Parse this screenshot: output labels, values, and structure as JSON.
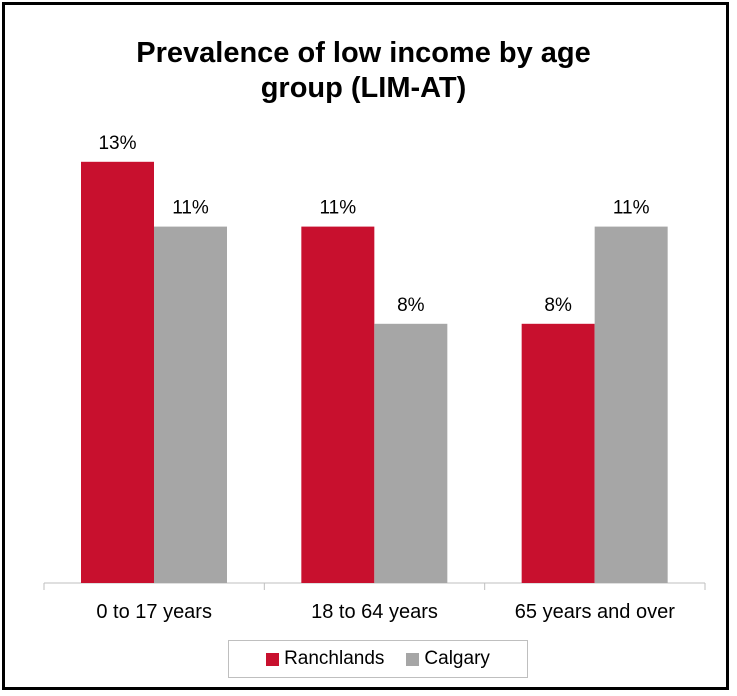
{
  "chart_data": {
    "type": "bar",
    "title": "Prevalence of low income by age group (LIM-AT)",
    "categories": [
      "0 to 17 years",
      "18 to 64 years",
      "65 years and over"
    ],
    "series": [
      {
        "name": "Ranchlands",
        "values": [
          13,
          11,
          8
        ],
        "labels": [
          "13%",
          "11%",
          "8%"
        ],
        "color": "#c8102e"
      },
      {
        "name": "Calgary",
        "values": [
          11,
          8,
          11
        ],
        "labels": [
          "11%",
          "8%",
          "11%"
        ],
        "color": "#a6a6a6"
      }
    ],
    "ylim": [
      0,
      15
    ],
    "grid": false,
    "legend_position": "bottom"
  }
}
